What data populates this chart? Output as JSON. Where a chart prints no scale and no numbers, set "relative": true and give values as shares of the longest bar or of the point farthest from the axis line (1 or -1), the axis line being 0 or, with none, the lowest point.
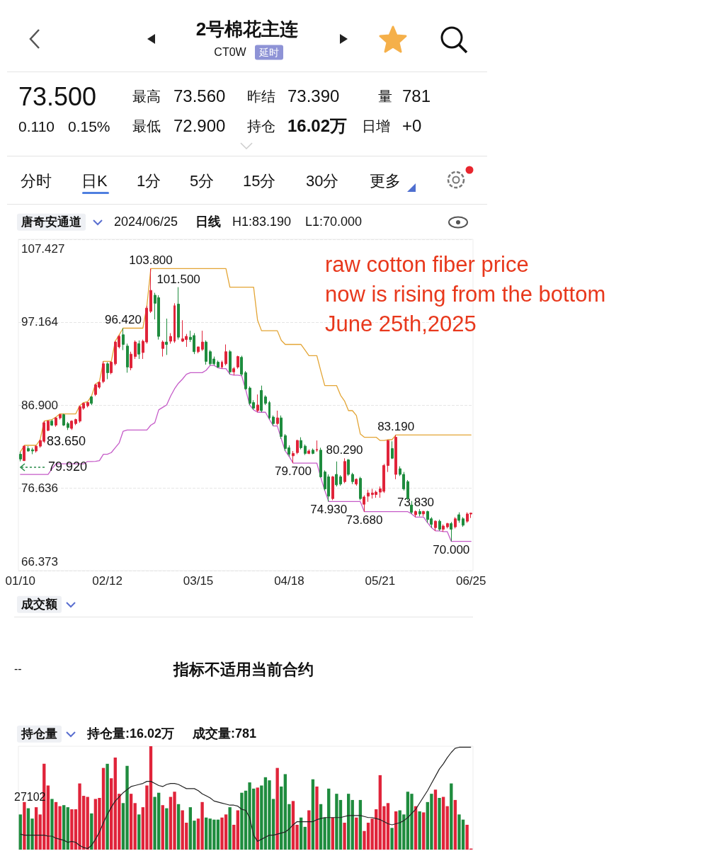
{
  "chart_data": [
    {
      "type": "other",
      "title": "2号棉花主连",
      "subtitle": "CT0W",
      "annotations": [
        "延时",
        "73.500",
        "0.110",
        "0.15%",
        "最高",
        "73.560",
        "昨结",
        "73.390",
        "量",
        "781",
        "最低",
        "72.900",
        "持仓",
        "16.02万",
        "日增",
        "+0",
        "分时",
        "日K",
        "1分",
        "5分",
        "15分",
        "30分",
        "更多"
      ]
    },
    {
      "type": "candlestick",
      "categories": [
        "01/10",
        null,
        null,
        null,
        null,
        null,
        null,
        null,
        null,
        null,
        null,
        null,
        null,
        null,
        null,
        null,
        null,
        null,
        null,
        null,
        null,
        null,
        "02/12",
        null,
        null,
        null,
        null,
        null,
        null,
        null,
        null,
        null,
        null,
        null,
        null,
        null,
        null,
        null,
        null,
        null,
        null,
        null,
        null,
        null,
        null,
        "03/15",
        null,
        null,
        null,
        null,
        null,
        null,
        null,
        null,
        null,
        null,
        null,
        null,
        null,
        null,
        null,
        null,
        null,
        null,
        null,
        null,
        null,
        null,
        "04/18",
        null,
        null,
        null,
        null,
        null,
        null,
        null,
        null,
        null,
        null,
        null,
        null,
        null,
        null,
        null,
        null,
        null,
        null,
        null,
        null,
        null,
        null,
        "05/21",
        null,
        null,
        null,
        null,
        null,
        null,
        null,
        null,
        null,
        null,
        null,
        null,
        null,
        null,
        null,
        null,
        null,
        null,
        null,
        null,
        null,
        null,
        "06/25"
      ],
      "ohlc": [
        [
          80.8,
          81.1,
          79.92,
          80.2
        ],
        [
          80.0,
          81.9,
          80.0,
          81.8
        ],
        [
          81.5,
          81.8,
          81.1,
          81.2
        ],
        [
          81.35,
          81.6,
          80.8,
          81.2
        ],
        [
          81.2,
          81.9,
          81.0,
          81.8
        ],
        [
          81.8,
          82.6,
          81.6,
          82.5
        ],
        [
          82.4,
          84.9,
          82.2,
          84.7
        ],
        [
          83.75,
          85.0,
          83.65,
          84.9
        ],
        [
          84.9,
          85.1,
          84.3,
          84.4
        ],
        [
          84.4,
          85.4,
          84.2,
          85.3
        ],
        [
          85.3,
          85.8,
          85.1,
          85.7
        ],
        [
          85.7,
          85.8,
          84.3,
          84.4
        ],
        [
          84.6,
          84.8,
          83.8,
          84.1
        ],
        [
          84.0,
          85.0,
          83.8,
          84.9
        ],
        [
          84.6,
          85.2,
          84.4,
          85.1
        ],
        [
          84.9,
          86.8,
          84.7,
          86.7
        ],
        [
          86.5,
          87.2,
          86.3,
          87.1
        ],
        [
          86.8,
          87.3,
          86.6,
          87.2
        ],
        [
          87.9,
          88.0,
          86.9,
          87.1
        ],
        [
          88.2,
          89.5,
          88.0,
          89.4
        ],
        [
          89.1,
          89.8,
          88.9,
          89.7
        ],
        [
          89.8,
          92.3,
          89.6,
          92.0
        ],
        [
          92.0,
          92.2,
          90.1,
          90.9
        ],
        [
          90.9,
          92.3,
          90.7,
          92.2
        ],
        [
          92.0,
          94.8,
          91.8,
          94.7
        ],
        [
          94.1,
          95.6,
          93.9,
          95.4
        ],
        [
          95.6,
          96.42,
          93.7,
          94.4
        ],
        [
          94.2,
          94.5,
          90.9,
          91.6
        ],
        [
          91.5,
          93.5,
          91.2,
          93.2
        ],
        [
          92.9,
          94.9,
          92.6,
          94.7
        ],
        [
          94.5,
          94.9,
          92.6,
          93.2
        ],
        [
          93.4,
          95.0,
          92.6,
          94.8
        ],
        [
          94.7,
          99.2,
          94.5,
          98.9
        ],
        [
          98.5,
          103.8,
          98.3,
          101.1
        ],
        [
          100.5,
          100.8,
          97.5,
          99.5
        ],
        [
          100.2,
          100.5,
          95.0,
          95.4
        ],
        [
          93.9,
          94.9,
          92.9,
          94.7
        ],
        [
          94.7,
          97.6,
          93.1,
          94.4
        ],
        [
          94.8,
          95.8,
          94.5,
          95.4
        ],
        [
          94.8,
          99.5,
          94.6,
          99.2
        ],
        [
          99.4,
          101.5,
          95.0,
          95.3
        ],
        [
          94.8,
          97.4,
          94.7,
          95.1
        ],
        [
          95.0,
          95.7,
          94.1,
          95.4
        ],
        [
          95.3,
          96.1,
          94.7,
          95.0
        ],
        [
          95.5,
          95.8,
          93.2,
          93.5
        ],
        [
          93.5,
          94.1,
          93.3,
          94.1
        ],
        [
          93.8,
          96.1,
          93.6,
          94.7
        ],
        [
          94.7,
          94.9,
          91.9,
          92.3
        ],
        [
          93.5,
          93.7,
          91.8,
          92.0
        ],
        [
          92.6,
          92.9,
          91.8,
          92.0
        ],
        [
          92.2,
          92.4,
          91.5,
          91.6
        ],
        [
          91.6,
          92.4,
          91.4,
          92.2
        ],
        [
          92.0,
          94.4,
          91.8,
          93.5
        ],
        [
          93.5,
          93.7,
          90.7,
          91.0
        ],
        [
          91.0,
          91.6,
          90.6,
          91.4
        ],
        [
          91.6,
          93.0,
          91.4,
          92.9
        ],
        [
          92.8,
          93.0,
          90.5,
          90.7
        ],
        [
          90.9,
          91.1,
          88.8,
          88.9
        ],
        [
          89.0,
          89.2,
          86.9,
          87.1
        ],
        [
          87.2,
          87.5,
          86.3,
          86.5
        ],
        [
          86.2,
          88.2,
          86.0,
          86.9
        ],
        [
          88.7,
          89.3,
          86.0,
          86.2
        ],
        [
          87.9,
          88.1,
          86.9,
          87.1
        ],
        [
          87.2,
          87.4,
          85.1,
          85.3
        ],
        [
          85.4,
          85.6,
          84.3,
          84.6
        ],
        [
          84.6,
          86.2,
          84.4,
          85.3
        ],
        [
          85.3,
          85.6,
          82.7,
          83.0
        ],
        [
          83.1,
          83.3,
          81.2,
          81.5
        ],
        [
          81.6,
          81.9,
          80.5,
          80.8
        ],
        [
          80.6,
          81.2,
          79.7,
          80.9
        ],
        [
          81.0,
          82.6,
          80.8,
          82.5
        ],
        [
          82.5,
          82.9,
          81.4,
          81.6
        ],
        [
          81.8,
          82.0,
          80.7,
          80.9
        ],
        [
          80.9,
          81.4,
          80.8,
          81.2
        ],
        [
          81.3,
          81.5,
          80.8,
          80.9
        ],
        [
          81.3,
          82.5,
          81.1,
          81.4
        ],
        [
          81.3,
          81.6,
          77.9,
          78.0
        ],
        [
          78.6,
          78.8,
          76.3,
          76.5
        ],
        [
          78.0,
          78.3,
          74.93,
          75.6
        ],
        [
          75.3,
          78.1,
          75.1,
          78.0
        ],
        [
          78.3,
          79.9,
          76.8,
          77.0
        ],
        [
          78.0,
          78.2,
          76.9,
          77.1
        ],
        [
          77.4,
          80.29,
          77.2,
          79.9
        ],
        [
          80.1,
          80.2,
          78.1,
          78.3
        ],
        [
          78.3,
          78.5,
          77.1,
          77.4
        ],
        [
          77.1,
          77.8,
          76.9,
          77.7
        ],
        [
          77.8,
          78.0,
          75.1,
          75.3
        ],
        [
          74.6,
          75.7,
          73.68,
          75.5
        ],
        [
          75.6,
          76.4,
          74.9,
          76.0
        ],
        [
          75.8,
          76.5,
          75.3,
          76.0
        ],
        [
          75.8,
          76.3,
          75.4,
          76.1
        ],
        [
          76.1,
          76.8,
          75.4,
          76.5
        ],
        [
          76.2,
          79.6,
          76.0,
          79.4
        ],
        [
          79.4,
          82.6,
          78.6,
          82.5
        ],
        [
          81.5,
          82.4,
          80.2,
          80.3
        ],
        [
          78.3,
          83.19,
          77.7,
          82.9
        ],
        [
          79.0,
          79.3,
          78.1,
          78.3
        ],
        [
          78.3,
          78.6,
          76.3,
          76.5
        ],
        [
          77.4,
          77.6,
          75.1,
          75.3
        ],
        [
          74.5,
          75.0,
          73.4,
          73.6
        ],
        [
          73.3,
          73.83,
          73.0,
          73.7
        ],
        [
          73.7,
          74.0,
          73.1,
          73.4
        ],
        [
          73.4,
          73.8,
          73.1,
          73.7
        ],
        [
          73.7,
          73.8,
          72.3,
          72.7
        ],
        [
          72.8,
          73.0,
          71.7,
          72.1
        ],
        [
          71.7,
          72.6,
          71.3,
          72.5
        ],
        [
          72.5,
          72.7,
          71.3,
          71.5
        ],
        [
          71.5,
          72.1,
          71.2,
          71.9
        ],
        [
          71.8,
          72.3,
          71.6,
          72.2
        ],
        [
          72.2,
          72.4,
          70.0,
          71.5
        ],
        [
          71.8,
          73.0,
          71.6,
          72.8
        ],
        [
          73.3,
          73.6,
          72.3,
          72.6
        ],
        [
          72.8,
          73.0,
          71.8,
          72.0
        ],
        [
          72.5,
          73.6,
          72.3,
          73.4
        ],
        [
          73.39,
          73.56,
          72.9,
          73.5
        ]
      ],
      "colors": [
        "#1f8c3e",
        "#e0243a",
        "#1f8c3e",
        "#1f8c3e",
        "#e0243a",
        "#e0243a",
        "#e0243a",
        "#e0243a",
        "#1f8c3e",
        "#e0243a",
        "#e0243a",
        "#1f8c3e",
        "#1f8c3e",
        "#e0243a",
        "#e0243a",
        "#e0243a",
        "#e0243a",
        "#e0243a",
        "#1f8c3e",
        "#e0243a",
        "#e0243a",
        "#e0243a",
        "#1f8c3e",
        "#e0243a",
        "#e0243a",
        "#e0243a",
        "#1f8c3e",
        "#1f8c3e",
        "#e0243a",
        "#e0243a",
        "#1f8c3e",
        "#e0243a",
        "#e0243a",
        "#e0243a",
        "#1f8c3e",
        "#1f8c3e",
        "#e0243a",
        "#1f8c3e",
        "#e0243a",
        "#e0243a",
        "#1f8c3e",
        "#e0243a",
        "#e0243a",
        "#1f8c3e",
        "#1f8c3e",
        "#e0243a",
        "#e0243a",
        "#1f8c3e",
        "#1f8c3e",
        "#1f8c3e",
        "#1f8c3e",
        "#e0243a",
        "#e0243a",
        "#1f8c3e",
        "#e0243a",
        "#e0243a",
        "#1f8c3e",
        "#1f8c3e",
        "#1f8c3e",
        "#1f8c3e",
        "#e0243a",
        "#1f8c3e",
        "#1f8c3e",
        "#1f8c3e",
        "#1f8c3e",
        "#e0243a",
        "#1f8c3e",
        "#1f8c3e",
        "#1f8c3e",
        "#e0243a",
        "#e0243a",
        "#1f8c3e",
        "#1f8c3e",
        "#e0243a",
        "#1f8c3e",
        "#e0243a",
        "#1f8c3e",
        "#1f8c3e",
        "#1f8c3e",
        "#e0243a",
        "#1f8c3e",
        "#1f8c3e",
        "#e0243a",
        "#1f8c3e",
        "#1f8c3e",
        "#e0243a",
        "#1f8c3e",
        "#e0243a",
        "#e0243a",
        "#e0243a",
        "#e0243a",
        "#e0243a",
        "#e0243a",
        "#e0243a",
        "#1f8c3e",
        "#e0243a",
        "#1f8c3e",
        "#1f8c3e",
        "#1f8c3e",
        "#1f8c3e",
        "#e0243a",
        "#1f8c3e",
        "#e0243a",
        "#1f8c3e",
        "#1f8c3e",
        "#e0243a",
        "#1f8c3e",
        "#e0243a",
        "#e0243a",
        "#1f8c3e",
        "#e0243a",
        "#1f8c3e",
        "#1f8c3e",
        "#e0243a",
        "#e0243a"
      ],
      "series": [
        {
          "type": "line",
          "color": "#e3a535",
          "values": [
            81.1,
            81.9,
            81.9,
            81.9,
            81.9,
            82.6,
            84.9,
            85.0,
            85.1,
            85.4,
            85.8,
            85.8,
            85.8,
            85.8,
            85.8,
            86.8,
            87.2,
            87.3,
            88.0,
            89.5,
            89.8,
            92.3,
            92.3,
            92.3,
            94.8,
            95.6,
            96.42,
            96.42,
            96.42,
            96.42,
            96.42,
            96.42,
            99.2,
            103.8,
            103.8,
            103.8,
            103.8,
            103.8,
            103.8,
            103.8,
            103.8,
            103.8,
            103.8,
            103.8,
            103.8,
            103.8,
            103.8,
            103.8,
            103.8,
            103.8,
            103.8,
            103.8,
            103.8,
            101.5,
            101.5,
            101.5,
            101.5,
            101.5,
            101.5,
            101.5,
            97.4,
            96.1,
            96.1,
            96.1,
            96.1,
            96.1,
            94.9,
            94.4,
            94.4,
            94.4,
            94.4,
            94.4,
            93.7,
            93.0,
            93.0,
            93.0,
            91.1,
            89.3,
            89.3,
            89.3,
            89.3,
            88.1,
            87.4,
            86.2,
            86.2,
            85.6,
            83.3,
            82.9,
            82.9,
            82.9,
            82.9,
            82.5,
            82.5,
            82.6,
            82.6,
            83.19,
            83.19,
            83.19,
            83.19,
            83.19,
            83.19,
            83.19,
            83.19,
            83.19,
            83.19,
            83.19,
            83.19,
            83.19,
            83.19,
            83.19,
            83.19,
            83.19,
            83.19,
            83.19,
            83.19
          ]
        },
        {
          "type": "line",
          "color": "#c55bc8",
          "values": [
            78.3,
            78.3,
            78.3,
            78.3,
            78.3,
            78.3,
            78.3,
            78.3,
            79.0,
            79.6,
            79.6,
            79.6,
            79.6,
            79.6,
            79.6,
            79.6,
            79.6,
            79.9,
            79.9,
            79.92,
            80.0,
            80.8,
            80.8,
            81.0,
            81.6,
            82.2,
            83.65,
            83.8,
            83.8,
            83.8,
            83.8,
            83.8,
            83.8,
            84.4,
            84.7,
            86.3,
            86.6,
            86.9,
            88.0,
            88.9,
            89.6,
            90.1,
            90.7,
            90.9,
            90.9,
            90.9,
            90.9,
            91.2,
            91.8,
            91.8,
            91.5,
            91.4,
            91.4,
            90.7,
            90.6,
            90.6,
            90.5,
            88.8,
            86.9,
            86.3,
            86.0,
            86.0,
            86.0,
            85.1,
            84.3,
            84.3,
            82.7,
            81.2,
            80.5,
            79.7,
            79.7,
            79.7,
            79.7,
            79.7,
            79.7,
            79.7,
            77.9,
            76.3,
            74.93,
            74.93,
            74.93,
            74.93,
            74.93,
            74.93,
            74.93,
            74.93,
            74.93,
            73.68,
            73.68,
            73.68,
            73.68,
            73.68,
            73.68,
            73.68,
            73.68,
            73.68,
            73.68,
            73.68,
            73.68,
            73.4,
            73.0,
            73.0,
            73.0,
            72.3,
            71.7,
            71.3,
            71.3,
            71.2,
            71.2,
            70.0,
            70.0,
            70.0,
            70.0,
            70.0,
            70.0
          ]
        }
      ],
      "ylim": [
        66.373,
        107.427
      ],
      "yticks": [
        {
          "value": 66.373,
          "label": "66.373"
        },
        {
          "value": 76.636,
          "label": "76.636"
        },
        {
          "value": 86.9,
          "label": "86.900"
        },
        {
          "value": 97.164,
          "label": "97.164"
        },
        {
          "value": 107.427,
          "label": "107.427"
        }
      ],
      "grid": "y",
      "annotations": [
        "唐奇安通道",
        "2024/06/25",
        "日线",
        "H1:83.190",
        "L1:70.000",
        "raw cotton fiber price\nnow is rising from the bottom\nJune 25th,2025",
        "83.650",
        "79.920",
        {
          "text": "103.800",
          "y": 103.8
        },
        {
          "text": "101.500",
          "y": 101.5
        },
        {
          "text": "96.420",
          "y": 96.42
        },
        {
          "text": "79.700",
          "y": 79.7
        },
        {
          "text": "80.290",
          "y": 80.29
        },
        {
          "text": "74.930",
          "y": 74.93
        },
        {
          "text": "73.680",
          "y": 73.68
        },
        {
          "text": "83.190",
          "y": 83.19
        },
        {
          "text": "73.830",
          "y": 73.83
        },
        {
          "text": "70.000",
          "y": 70.0
        }
      ]
    },
    {
      "type": "other",
      "title": "成交额",
      "annotations": [
        "--",
        "指标不适用当前合约"
      ]
    },
    {
      "type": "bar",
      "relative": true,
      "categories": [
        null,
        null,
        null,
        null,
        null,
        null,
        null,
        null,
        null,
        null,
        null,
        null,
        null,
        null,
        null,
        null,
        null,
        null,
        null,
        null,
        null,
        null,
        null,
        null,
        null,
        null,
        null,
        null,
        null,
        null,
        null,
        null,
        null,
        null,
        null,
        null,
        null,
        null,
        null,
        null,
        null,
        null,
        null,
        null,
        null,
        null,
        null,
        null,
        null,
        null,
        null,
        null,
        null,
        null,
        null,
        null,
        null,
        null,
        null,
        null,
        null,
        null,
        null,
        null,
        null,
        null,
        null,
        null,
        null,
        null,
        null,
        null,
        null,
        null,
        null,
        null,
        null,
        null,
        null,
        null,
        null,
        null,
        null,
        null,
        null,
        null,
        null,
        null,
        null,
        null,
        null,
        null,
        null,
        null,
        null,
        null,
        null,
        null,
        null,
        null,
        null,
        null,
        null,
        null,
        null,
        null,
        null,
        null,
        null,
        null,
        null,
        null,
        null,
        null,
        null
      ],
      "series": [
        {
          "type": "bar",
          "color": "#e0243a",
          "values": [
            null,
            0.46,
            null,
            null,
            0.41,
            0.34,
            0.83,
            0.62,
            null,
            0.46,
            0.42,
            null,
            null,
            0.39,
            0.39,
            0.64,
            0.52,
            0.51,
            null,
            0.49,
            0.5,
            0.79,
            null,
            0.69,
            0.89,
            0.54,
            null,
            null,
            0.54,
            0.45,
            null,
            0.41,
            0.62,
            1.0,
            null,
            null,
            0.43,
            null,
            0.51,
            0.56,
            null,
            0.38,
            0.26,
            null,
            null,
            0.3,
            0.46,
            null,
            null,
            null,
            null,
            0.31,
            0.34,
            null,
            0.24,
            0.38,
            null,
            null,
            null,
            null,
            0.6,
            null,
            null,
            null,
            null,
            0.79,
            null,
            null,
            null,
            0.47,
            0.24,
            null,
            null,
            0.38,
            null,
            0.61,
            null,
            null,
            null,
            0.31,
            null,
            null,
            0.26,
            null,
            null,
            0.31,
            null,
            0.18,
            0.26,
            0.3,
            0.39,
            0.72,
            0.42,
            0.45,
            null,
            0.37,
            null,
            null,
            null,
            null,
            0.42,
            null,
            0.36,
            null,
            null,
            0.58,
            null,
            0.51,
            0.42,
            null,
            0.48,
            null,
            null,
            0.24,
            0.01
          ]
        },
        {
          "type": "bar",
          "color": "#1f8c3e",
          "values": [
            0.34,
            null,
            0.4,
            0.3,
            null,
            null,
            null,
            null,
            0.49,
            null,
            null,
            0.43,
            0.41,
            null,
            null,
            null,
            null,
            null,
            0.35,
            null,
            null,
            null,
            0.83,
            null,
            null,
            null,
            0.45,
            0.81,
            null,
            null,
            0.34,
            null,
            null,
            null,
            0.51,
            0.55,
            null,
            0.4,
            null,
            null,
            0.44,
            null,
            null,
            0.41,
            0.28,
            null,
            null,
            0.31,
            0.3,
            0.29,
            0.29,
            null,
            null,
            0.41,
            null,
            null,
            0.55,
            0.57,
            0.65,
            0.59,
            null,
            0.62,
            0.7,
            0.67,
            0.49,
            null,
            0.61,
            0.73,
            0.44,
            null,
            null,
            0.31,
            0.22,
            null,
            0.68,
            null,
            0.44,
            0.31,
            0.59,
            null,
            0.54,
            0.48,
            null,
            0.54,
            0.48,
            null,
            0.48,
            null,
            null,
            null,
            null,
            null,
            null,
            null,
            0.21,
            null,
            0.38,
            0.34,
            0.56,
            0.54,
            null,
            0.37,
            null,
            0.46,
            0.54,
            null,
            0.5,
            null,
            null,
            0.64,
            null,
            0.34,
            0.29,
            null,
            null
          ]
        },
        {
          "type": "line",
          "color": "#222222",
          "values": [
            0.15,
            0.14,
            0.14,
            0.14,
            0.14,
            0.14,
            0.14,
            0.13,
            0.13,
            0.11,
            0.1,
            0.09,
            0.07,
            0.08,
            0.07,
            0.04,
            0.02,
            0.01,
            0.04,
            0.1,
            0.17,
            0.26,
            0.34,
            0.41,
            0.47,
            0.51,
            0.55,
            0.58,
            0.61,
            0.62,
            0.63,
            0.64,
            0.66,
            0.66,
            0.64,
            0.62,
            0.61,
            0.63,
            0.64,
            0.64,
            0.63,
            0.61,
            0.59,
            0.59,
            0.59,
            0.57,
            0.54,
            0.52,
            0.5,
            0.47,
            0.46,
            0.45,
            0.44,
            0.43,
            0.43,
            0.42,
            0.39,
            0.38,
            0.31,
            0.14,
            0.08,
            0.1,
            0.12,
            0.14,
            0.14,
            0.15,
            0.16,
            0.17,
            0.2,
            0.24,
            0.27,
            0.27,
            0.27,
            0.27,
            0.27,
            0.29,
            0.3,
            0.31,
            0.31,
            0.31,
            0.31,
            0.31,
            0.32,
            0.33,
            0.33,
            0.33,
            0.33,
            0.32,
            0.31,
            0.31,
            0.3,
            0.29,
            0.27,
            0.25,
            0.24,
            0.25,
            0.26,
            0.28,
            0.31,
            0.35,
            0.39,
            0.45,
            0.51,
            0.57,
            0.64,
            0.71,
            0.78,
            0.83,
            0.89,
            0.94,
            0.98,
            0.99,
            0.99,
            0.99,
            0.99
          ]
        }
      ],
      "annotations": [
        "持仓量",
        "持仓量:16.02万",
        "成交量:781",
        "27102"
      ]
    }
  ]
}
